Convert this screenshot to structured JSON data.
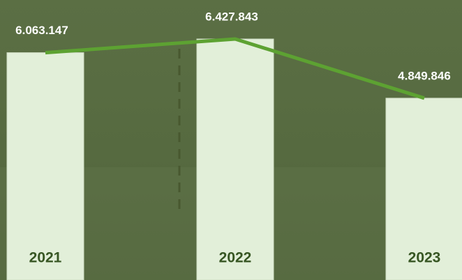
{
  "chart_data": {
    "type": "bar",
    "categories": [
      "2021",
      "2022",
      "2023"
    ],
    "values": [
      6063147,
      6427843,
      4849846
    ],
    "value_labels": [
      "6.063.147",
      "6.427.843",
      "4.849.846"
    ],
    "color": "#e2efd9",
    "line_color": "#5da232"
  }
}
